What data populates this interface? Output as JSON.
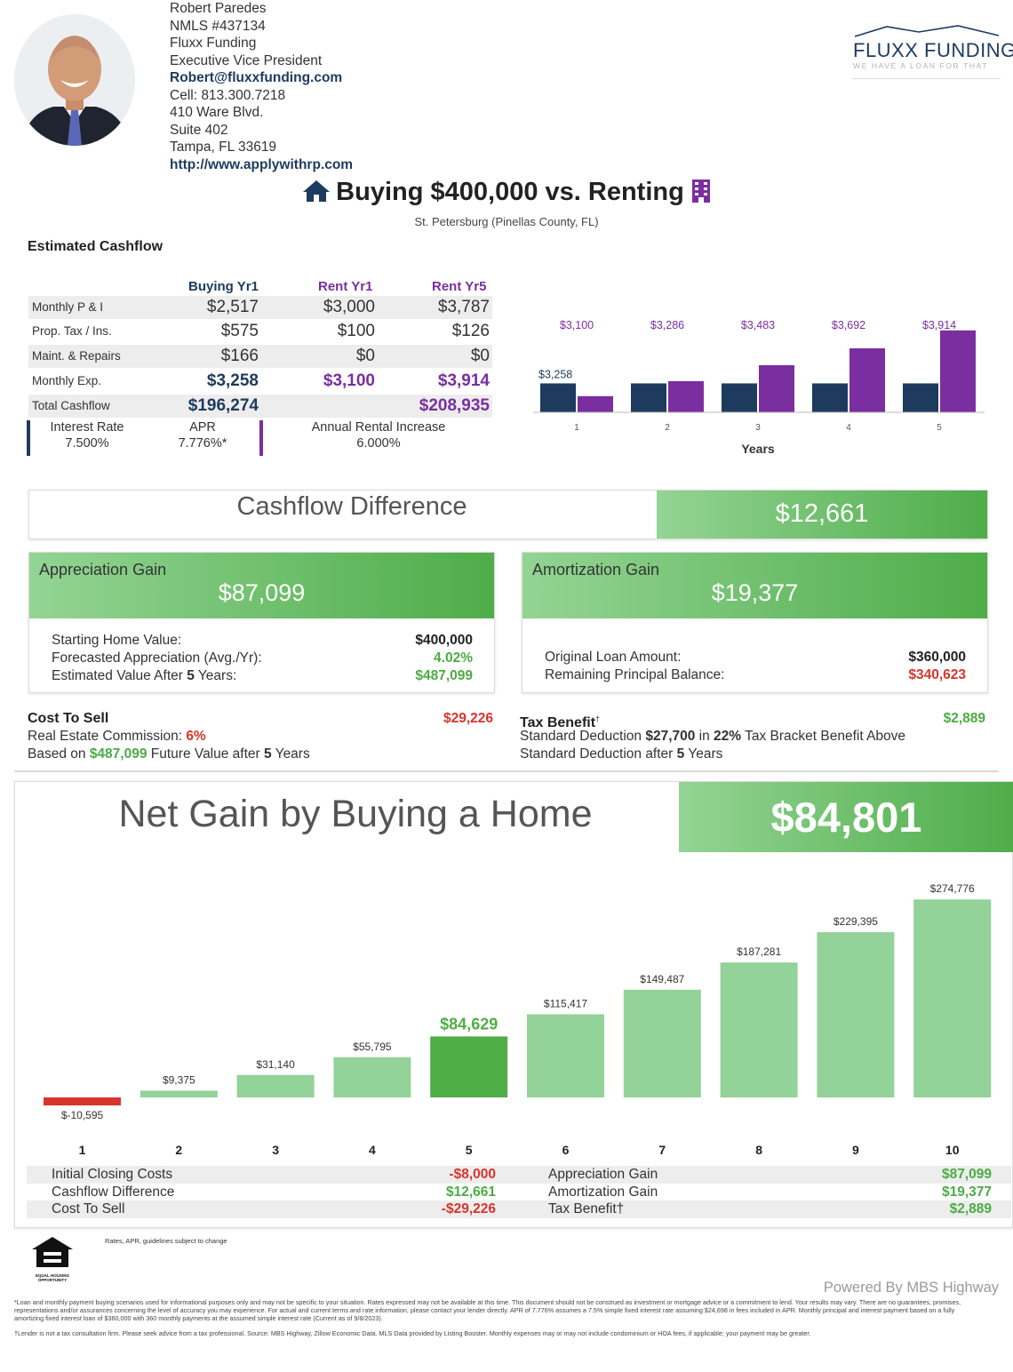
{
  "agent": {
    "name": "Robert Paredes",
    "nmls": "NMLS #437134",
    "company": "Fluxx Funding",
    "role": "Executive Vice President",
    "email": "Robert@fluxxfunding.com",
    "cell": "Cell: 813.300.7218",
    "address1": "410 Ware Blvd.",
    "address2": "Suite 402",
    "city": "Tampa,  FL  33619",
    "website": "http://www.applywithrp.com"
  },
  "logo": {
    "brand": "FLUXX FUNDING",
    "tagline": "WE HAVE A LOAN FOR THAT",
    "color": "#1e3a5f"
  },
  "title": {
    "text": "Buying $400,000 vs. Renting",
    "location": "St. Petersburg (Pinellas County, FL)",
    "left_icon": "house-icon",
    "right_icon": "building-icon"
  },
  "cashflow": {
    "heading": "Estimated Cashflow",
    "columns": [
      "Buying Yr1",
      "Rent Yr1",
      "Rent Yr5"
    ],
    "rows": [
      {
        "label": "Monthly P & I",
        "values": [
          "$2,517",
          "$3,000",
          "$3,787"
        ]
      },
      {
        "label": "Prop. Tax / Ins.",
        "values": [
          "$575",
          "$100",
          "$126"
        ]
      },
      {
        "label": "Maint. & Repairs",
        "values": [
          "$166",
          "$0",
          "$0"
        ]
      },
      {
        "label": "Monthly Exp.",
        "values": [
          "$3,258",
          "$3,100",
          "$3,914"
        ]
      },
      {
        "label": "Total Cashflow",
        "values": [
          "$196,274",
          "",
          "$208,935"
        ]
      }
    ],
    "interest_rate_label": "Interest Rate",
    "interest_rate": "7.500%",
    "apr_label": "APR",
    "apr": "7.776%*",
    "rental_increase_label": "Annual Rental Increase",
    "rental_increase": "6.000%"
  },
  "chart_data": [
    {
      "type": "bar",
      "categories": [
        "1",
        "2",
        "3",
        "4",
        "5"
      ],
      "series": [
        {
          "values": [
            3258,
            3258,
            3258,
            3258,
            3258
          ],
          "color": "#1e3a5f"
        },
        {
          "values": [
            3100,
            3286,
            3483,
            3692,
            3914
          ],
          "color": "#7a2ea0"
        }
      ],
      "buy_label": "$3,258",
      "rent_labels": [
        "$3,100",
        "$3,286",
        "$3,483",
        "$3,692",
        "$3,914"
      ],
      "xlabel": "Years",
      "ylabel": "",
      "ylim": [
        2900,
        4000
      ]
    },
    {
      "type": "bar",
      "categories": [
        "1",
        "2",
        "3",
        "4",
        "5",
        "6",
        "7",
        "8",
        "9",
        "10"
      ],
      "values": [
        -10595,
        9375,
        31140,
        55795,
        84629,
        115417,
        149487,
        187281,
        229395,
        274776
      ],
      "labels": [
        "$-10,595",
        "$9,375",
        "$31,140",
        "$55,795",
        "$84,629",
        "$115,417",
        "$149,487",
        "$187,281",
        "$229,395",
        "$274,776"
      ],
      "highlight_index": 4,
      "colors": {
        "negative": "#d9342b",
        "normal": "#93d298",
        "highlight": "#4fae45"
      },
      "ylim": [
        -12000,
        280000
      ]
    }
  ],
  "cashflow_difference": {
    "label": "Cashflow Difference",
    "value": "$12,661"
  },
  "appreciation": {
    "label": "Appreciation Gain",
    "value": "$87,099",
    "starting_label": "Starting Home Value:",
    "starting_value": "$400,000",
    "forecast_label": "Forecasted Appreciation (Avg./Yr):",
    "forecast_value": "4.02%",
    "est_label_pre": "Estimated Value After ",
    "est_years": "5",
    "est_label_post": " Years:",
    "est_value": "$487,099"
  },
  "amortization": {
    "label": "Amortization Gain",
    "value": "$19,377",
    "loan_label": "Original Loan Amount:",
    "loan_value": "$360,000",
    "remaining_label": "Remaining Principal Balance:",
    "remaining_value": "$340,623"
  },
  "cost_to_sell": {
    "label": "Cost To Sell",
    "value": "$29,226",
    "commission_label": "Real Estate Commission: ",
    "commission_value": "6%",
    "based_pre": "Based on ",
    "based_value": "$487,099",
    "based_mid": " Future Value after ",
    "based_years": "5",
    "based_post": " Years"
  },
  "tax_benefit": {
    "label": "Tax Benefit",
    "dagger": "†",
    "value": "$2,889",
    "line1_pre": "Standard Deduction ",
    "deduction": "$27,700",
    "line1_mid": " in ",
    "bracket": "22%",
    "line1_post": " Tax Bracket Benefit Above",
    "line2_pre": "Standard Deduction after ",
    "line2_years": "5",
    "line2_post": " Years"
  },
  "net_gain": {
    "label": "Net Gain by Buying a Home",
    "value": "$84,801"
  },
  "summary": {
    "left": [
      {
        "label": "Initial Closing Costs",
        "value": "-$8,000",
        "tone": "red"
      },
      {
        "label": "Cashflow Difference",
        "value": "$12,661",
        "tone": "green"
      },
      {
        "label": "Cost To Sell",
        "value": "-$29,226",
        "tone": "red"
      }
    ],
    "right": [
      {
        "label": "Appreciation Gain",
        "value": "$87,099",
        "tone": "green"
      },
      {
        "label": "Amortization Gain",
        "value": "$19,377",
        "tone": "green"
      },
      {
        "label": "Tax Benefit†",
        "value": "$2,889",
        "tone": "green"
      }
    ]
  },
  "footer": {
    "rates_note": "Rates, APR, guidelines subject to change",
    "ehl_text": "EQUAL HOUSING OPPORTUNITY",
    "powered": "Powered By MBS Highway",
    "disclaimer1": "*Loan and monthly payment buying scenarios used for informational purposes only and may not be specific to your situation. Rates expressed may not be available at this time. This document should not be construed as investment or mortgage advice or a commitment to lend. Your results may vary. There are no guarantees, promises, representations and/or assurances concerning the level of accuracy you may experience. For actual and current terms and rate information, please contact your lender directly. APR of 7.776% assumes a 7.5% simple fixed interest rate assuming $24,698 in fees included in APR. Monthly principal and interest payment based on a fully amortizing fixed interest loan of $360,000 with 360 monthly payments at the assumed simple interest rate (Current as of 9/8/2023).",
    "disclaimer2": "†Lender is not a tax consultation firm. Please seek advice from a tax professional. Source: MBS Highway, Zillow Economic Data. MLS Data provided by Listing Booster. Monthly expenses may or may not include condominium or HOA fees, if applicable; your payment may be greater."
  }
}
